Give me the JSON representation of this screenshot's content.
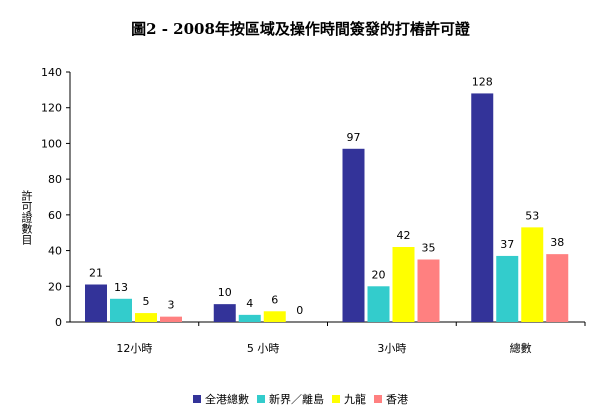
{
  "chart_data": {
    "type": "bar",
    "title": "圖2 - 2008年按區域及操作時間簽發的打樁許可證",
    "xlabel": "",
    "ylabel": "許可證數目",
    "ylim": [
      0,
      140
    ],
    "yticks": [
      0,
      20,
      40,
      60,
      80,
      100,
      120,
      140
    ],
    "categories": [
      "12小時",
      "5 小時",
      "3小時",
      "總數"
    ],
    "series": [
      {
        "name": "全港總數",
        "color": "#333399",
        "values": [
          21,
          10,
          97,
          128
        ]
      },
      {
        "name": "新界／離島",
        "color": "#33CCCC",
        "values": [
          13,
          4,
          20,
          37
        ]
      },
      {
        "name": "九龍",
        "color": "#FFFF00",
        "values": [
          5,
          6,
          42,
          53
        ]
      },
      {
        "name": "香港",
        "color": "#FF8080",
        "values": [
          3,
          0,
          35,
          38
        ]
      }
    ],
    "grid": false,
    "legend_position": "bottom"
  }
}
